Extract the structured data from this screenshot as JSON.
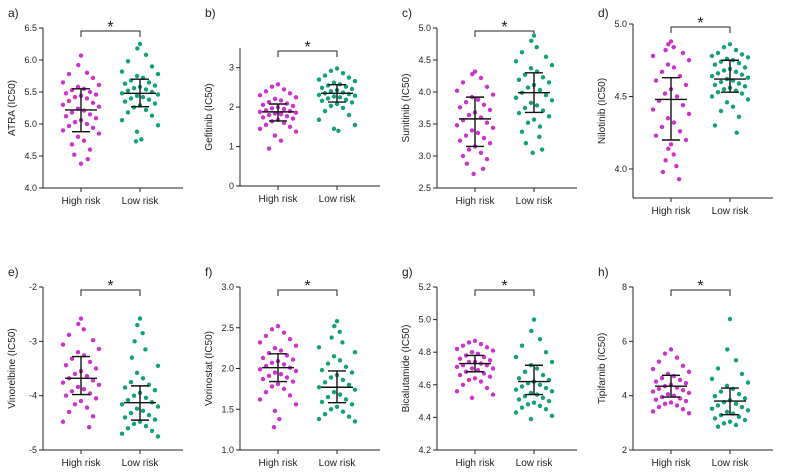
{
  "figure": {
    "colors": {
      "high_risk": "#cc33cc",
      "low_risk": "#11a07a"
    }
  },
  "chart_data": [
    {
      "panel": "a)",
      "type": "scatter",
      "ylabel": "ATRA (IC50)",
      "ylim": [
        4.0,
        6.5
      ],
      "yticks": [
        "4.0",
        "4.5",
        "5.0",
        "5.5",
        "6.0",
        "6.5"
      ],
      "categories": [
        "High risk",
        "Low risk"
      ],
      "significance": "*",
      "series": [
        {
          "name": "High risk",
          "mean": 5.22,
          "sd_low": 4.88,
          "sd_high": 5.55,
          "values": [
            6.07,
            5.92,
            5.8,
            5.78,
            5.72,
            5.65,
            5.61,
            5.58,
            5.55,
            5.53,
            5.5,
            5.48,
            5.46,
            5.44,
            5.42,
            5.4,
            5.36,
            5.33,
            5.3,
            5.27,
            5.24,
            5.21,
            5.18,
            5.15,
            5.12,
            5.09,
            5.06,
            5.03,
            5.0,
            4.97,
            4.94,
            4.9,
            4.85,
            4.8,
            4.74,
            4.68,
            4.6,
            4.52,
            4.45,
            4.38
          ]
        },
        {
          "name": "Low risk",
          "mean": 5.48,
          "sd_low": 5.27,
          "sd_high": 5.7,
          "values": [
            6.25,
            6.18,
            6.08,
            5.98,
            5.9,
            5.82,
            5.78,
            5.75,
            5.72,
            5.68,
            5.65,
            5.63,
            5.6,
            5.58,
            5.56,
            5.54,
            5.52,
            5.5,
            5.48,
            5.46,
            5.44,
            5.42,
            5.4,
            5.38,
            5.35,
            5.32,
            5.29,
            5.26,
            5.22,
            5.18,
            5.13,
            5.06,
            4.98,
            4.88,
            4.76,
            4.73
          ]
        }
      ]
    },
    {
      "panel": "b)",
      "type": "scatter",
      "ylabel": "Gefitinib (IC50)",
      "ylim": [
        0,
        3.5
      ],
      "yticks": [
        "0",
        "1",
        "2",
        "3"
      ],
      "categories": [
        "High risk",
        "Low risk"
      ],
      "significance": "*",
      "series": [
        {
          "name": "High risk",
          "mean": 1.88,
          "sd_low": 1.65,
          "sd_high": 2.08,
          "values": [
            2.58,
            2.52,
            2.45,
            2.4,
            2.35,
            2.3,
            2.25,
            2.21,
            2.17,
            2.13,
            2.09,
            2.06,
            2.03,
            2.0,
            1.97,
            1.95,
            1.92,
            1.9,
            1.88,
            1.86,
            1.84,
            1.82,
            1.8,
            1.77,
            1.74,
            1.71,
            1.68,
            1.64,
            1.6,
            1.55,
            1.5,
            1.45,
            1.38,
            1.28,
            1.15,
            0.95
          ]
        },
        {
          "name": "Low risk",
          "mean": 2.35,
          "sd_low": 2.13,
          "sd_high": 2.57,
          "values": [
            2.98,
            2.92,
            2.86,
            2.8,
            2.75,
            2.7,
            2.66,
            2.62,
            2.58,
            2.55,
            2.52,
            2.49,
            2.46,
            2.43,
            2.4,
            2.37,
            2.35,
            2.33,
            2.31,
            2.29,
            2.27,
            2.25,
            2.22,
            2.19,
            2.16,
            2.12,
            2.08,
            2.03,
            1.98,
            1.9,
            1.8,
            1.68,
            1.55,
            1.45,
            1.4
          ]
        }
      ]
    },
    {
      "panel": "c)",
      "type": "scatter",
      "ylabel": "Sunitinib (IC50)",
      "ylim": [
        2.5,
        5.0
      ],
      "yticks": [
        "2.5",
        "3.0",
        "3.5",
        "4.0",
        "4.5",
        "5.0"
      ],
      "categories": [
        "High risk",
        "Low risk"
      ],
      "significance": "*",
      "series": [
        {
          "name": "High risk",
          "mean": 3.58,
          "sd_low": 3.15,
          "sd_high": 3.92,
          "values": [
            4.32,
            4.28,
            4.22,
            4.15,
            4.08,
            4.02,
            3.96,
            3.92,
            3.88,
            3.84,
            3.8,
            3.76,
            3.72,
            3.68,
            3.64,
            3.6,
            3.56,
            3.52,
            3.48,
            3.44,
            3.4,
            3.36,
            3.32,
            3.28,
            3.24,
            3.2,
            3.15,
            3.1,
            3.05,
            3.0,
            2.95,
            2.88,
            2.8,
            2.72
          ]
        },
        {
          "name": "Low risk",
          "mean": 3.99,
          "sd_low": 3.68,
          "sd_high": 4.3,
          "values": [
            4.88,
            4.8,
            4.7,
            4.62,
            4.55,
            4.48,
            4.42,
            4.37,
            4.32,
            4.27,
            4.23,
            4.19,
            4.15,
            4.11,
            4.07,
            4.03,
            3.99,
            3.95,
            3.91,
            3.87,
            3.83,
            3.79,
            3.75,
            3.71,
            3.67,
            3.62,
            3.57,
            3.52,
            3.46,
            3.38,
            3.3,
            3.2,
            3.1,
            3.05
          ]
        }
      ]
    },
    {
      "panel": "d)",
      "type": "scatter",
      "ylabel": "Nilotinib (IC50)",
      "ylim": [
        3.8,
        5.0
      ],
      "yticks": [
        "4.0",
        "4.5",
        "5.0"
      ],
      "categories": [
        "High risk",
        "Low risk"
      ],
      "significance": "*",
      "series": [
        {
          "name": "High risk",
          "mean": 4.48,
          "sd_low": 4.2,
          "sd_high": 4.63,
          "values": [
            4.88,
            4.86,
            4.84,
            4.82,
            4.8,
            4.78,
            4.75,
            4.72,
            4.7,
            4.67,
            4.64,
            4.61,
            4.58,
            4.55,
            4.52,
            4.5,
            4.47,
            4.44,
            4.41,
            4.38,
            4.35,
            4.32,
            4.29,
            4.26,
            4.23,
            4.2,
            4.17,
            4.14,
            4.1,
            4.06,
            4.02,
            3.98,
            3.93
          ]
        },
        {
          "name": "Low risk",
          "mean": 4.62,
          "sd_low": 4.53,
          "sd_high": 4.75,
          "values": [
            4.86,
            4.84,
            4.82,
            4.8,
            4.79,
            4.78,
            4.77,
            4.76,
            4.75,
            4.74,
            4.73,
            4.72,
            4.7,
            4.69,
            4.68,
            4.67,
            4.66,
            4.65,
            4.64,
            4.63,
            4.62,
            4.61,
            4.6,
            4.59,
            4.58,
            4.57,
            4.56,
            4.55,
            4.54,
            4.53,
            4.52,
            4.5,
            4.48,
            4.46,
            4.43,
            4.4,
            4.36,
            4.3,
            4.25
          ]
        }
      ]
    },
    {
      "panel": "e)",
      "type": "scatter",
      "ylabel": "Vinorelbine (IC50)",
      "ylim": [
        -5,
        -2
      ],
      "yticks": [
        "-5",
        "-4",
        "-3",
        "-2"
      ],
      "categories": [
        "High risk",
        "Low risk"
      ],
      "significance": "*",
      "series": [
        {
          "name": "High risk",
          "mean": -3.68,
          "sd_low": -3.98,
          "sd_high": -3.28,
          "values": [
            -2.58,
            -2.68,
            -2.78,
            -2.88,
            -2.98,
            -3.06,
            -3.14,
            -3.2,
            -3.26,
            -3.32,
            -3.38,
            -3.44,
            -3.5,
            -3.55,
            -3.6,
            -3.64,
            -3.68,
            -3.72,
            -3.76,
            -3.8,
            -3.84,
            -3.88,
            -3.92,
            -3.96,
            -4.0,
            -4.05,
            -4.1,
            -4.16,
            -4.22,
            -4.3,
            -4.38,
            -4.48,
            -4.58
          ]
        },
        {
          "name": "Low risk",
          "mean": -4.13,
          "sd_low": -4.45,
          "sd_high": -3.82,
          "values": [
            -2.58,
            -2.7,
            -2.85,
            -3.0,
            -3.15,
            -3.3,
            -3.45,
            -3.58,
            -3.68,
            -3.75,
            -3.8,
            -3.85,
            -3.9,
            -3.95,
            -4.0,
            -4.04,
            -4.08,
            -4.12,
            -4.16,
            -4.2,
            -4.24,
            -4.28,
            -4.32,
            -4.36,
            -4.4,
            -4.44,
            -4.48,
            -4.52,
            -4.56,
            -4.6,
            -4.65,
            -4.7,
            -4.75
          ]
        }
      ]
    },
    {
      "panel": "f)",
      "type": "scatter",
      "ylabel": "Vorinostat (IC50)",
      "ylim": [
        1.0,
        3.0
      ],
      "yticks": [
        "1.0",
        "1.5",
        "2.0",
        "2.5",
        "3.0"
      ],
      "categories": [
        "High risk",
        "Low risk"
      ],
      "significance": "*",
      "series": [
        {
          "name": "High risk",
          "mean": 2.01,
          "sd_low": 1.84,
          "sd_high": 2.18,
          "values": [
            2.52,
            2.48,
            2.44,
            2.4,
            2.36,
            2.32,
            2.28,
            2.25,
            2.22,
            2.19,
            2.16,
            2.13,
            2.11,
            2.09,
            2.07,
            2.05,
            2.03,
            2.01,
            1.99,
            1.97,
            1.95,
            1.93,
            1.91,
            1.89,
            1.87,
            1.84,
            1.81,
            1.78,
            1.75,
            1.71,
            1.67,
            1.62,
            1.56,
            1.48,
            1.38,
            1.28
          ]
        },
        {
          "name": "Low risk",
          "mean": 1.77,
          "sd_low": 1.58,
          "sd_high": 1.97,
          "values": [
            2.58,
            2.52,
            2.45,
            2.38,
            2.32,
            2.26,
            2.2,
            2.15,
            2.1,
            2.06,
            2.02,
            1.98,
            1.95,
            1.92,
            1.89,
            1.86,
            1.83,
            1.8,
            1.77,
            1.74,
            1.71,
            1.68,
            1.65,
            1.62,
            1.59,
            1.56,
            1.53,
            1.5,
            1.47,
            1.44,
            1.41,
            1.38,
            1.35
          ]
        }
      ]
    },
    {
      "panel": "g)",
      "type": "scatter",
      "ylabel": "Bicalutamide (IC50)",
      "ylim": [
        4.2,
        5.2
      ],
      "yticks": [
        "4.2",
        "4.4",
        "4.6",
        "4.8",
        "5.0",
        "5.2"
      ],
      "categories": [
        "High risk",
        "Low risk"
      ],
      "significance": "*",
      "series": [
        {
          "name": "High risk",
          "mean": 4.73,
          "sd_low": 4.68,
          "sd_high": 4.78,
          "values": [
            4.87,
            4.86,
            4.85,
            4.84,
            4.83,
            4.82,
            4.81,
            4.8,
            4.79,
            4.78,
            4.77,
            4.76,
            4.75,
            4.74,
            4.74,
            4.73,
            4.72,
            4.72,
            4.71,
            4.7,
            4.7,
            4.69,
            4.68,
            4.67,
            4.66,
            4.65,
            4.64,
            4.63,
            4.62,
            4.6,
            4.58,
            4.56,
            4.54,
            4.52
          ]
        },
        {
          "name": "Low risk",
          "mean": 4.62,
          "sd_low": 4.54,
          "sd_high": 4.72,
          "values": [
            5.0,
            4.93,
            4.88,
            4.84,
            4.8,
            4.77,
            4.74,
            4.72,
            4.7,
            4.68,
            4.66,
            4.64,
            4.63,
            4.62,
            4.61,
            4.6,
            4.59,
            4.58,
            4.57,
            4.56,
            4.55,
            4.54,
            4.53,
            4.52,
            4.51,
            4.5,
            4.49,
            4.48,
            4.47,
            4.46,
            4.45,
            4.43,
            4.41,
            4.39
          ]
        }
      ]
    },
    {
      "panel": "h)",
      "type": "scatter",
      "ylabel": "Tipifarnib (IC50)",
      "ylim": [
        2,
        8
      ],
      "yticks": [
        "2",
        "4",
        "6",
        "8"
      ],
      "categories": [
        "High risk",
        "Low risk"
      ],
      "significance": "*",
      "series": [
        {
          "name": "High risk",
          "mean": 4.35,
          "sd_low": 3.95,
          "sd_high": 4.75,
          "values": [
            5.7,
            5.55,
            5.4,
            5.25,
            5.1,
            4.98,
            4.88,
            4.8,
            4.72,
            4.65,
            4.58,
            4.52,
            4.46,
            4.4,
            4.35,
            4.3,
            4.25,
            4.2,
            4.15,
            4.1,
            4.05,
            4.0,
            3.95,
            3.9,
            3.85,
            3.8,
            3.75,
            3.7,
            3.64,
            3.58,
            3.5,
            3.42,
            3.35
          ]
        },
        {
          "name": "Low risk",
          "mean": 3.8,
          "sd_low": 3.3,
          "sd_high": 4.28,
          "values": [
            6.82,
            5.7,
            5.3,
            5.0,
            4.8,
            4.62,
            4.48,
            4.36,
            4.25,
            4.15,
            4.06,
            3.98,
            3.9,
            3.83,
            3.76,
            3.7,
            3.64,
            3.58,
            3.52,
            3.46,
            3.4,
            3.34,
            3.28,
            3.22,
            3.16,
            3.1,
            3.04,
            2.98,
            2.92,
            2.86
          ]
        }
      ]
    }
  ]
}
